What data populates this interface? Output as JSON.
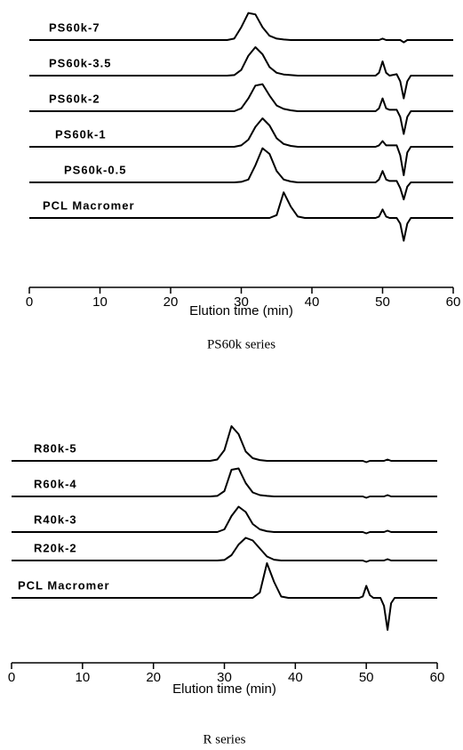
{
  "chart_data": [
    {
      "type": "line",
      "caption": "PS60k series",
      "xlabel": "Elution time (min)",
      "xlim": [
        0,
        60
      ],
      "xticks": [
        0,
        10,
        20,
        30,
        40,
        50,
        60
      ],
      "x": [
        0,
        28,
        29,
        30,
        31,
        32,
        33,
        34,
        35,
        36,
        37,
        38,
        39,
        40,
        49,
        49.5,
        50,
        50.5,
        51,
        52,
        52.5,
        53,
        53.5,
        54,
        60
      ],
      "series": [
        {
          "name": "PS60k-7",
          "color": "#000000",
          "values": [
            0,
            0,
            0.05,
            0.45,
            0.95,
            0.9,
            0.45,
            0.15,
            0.05,
            0.02,
            0,
            0,
            0,
            0,
            0,
            0,
            0.05,
            0,
            0,
            0,
            0,
            -0.08,
            0,
            0,
            0
          ]
        },
        {
          "name": "PS60k-3.5",
          "color": "#000000",
          "values": [
            0,
            0,
            0.02,
            0.2,
            0.7,
            1,
            0.75,
            0.3,
            0.1,
            0.04,
            0.02,
            0,
            0,
            0,
            0,
            0.1,
            0.5,
            0.1,
            0,
            0.05,
            -0.2,
            -0.8,
            -0.2,
            0,
            0
          ]
        },
        {
          "name": "PS60k-2",
          "color": "#000000",
          "values": [
            0,
            0,
            0,
            0.1,
            0.45,
            0.9,
            0.95,
            0.55,
            0.2,
            0.08,
            0.03,
            0,
            0,
            0,
            0,
            0.1,
            0.45,
            0.1,
            0.05,
            0.05,
            -0.2,
            -0.8,
            -0.2,
            0,
            0
          ]
        },
        {
          "name": "PS60k-1",
          "color": "#000000",
          "values": [
            0,
            0,
            0,
            0.05,
            0.25,
            0.7,
            1,
            0.75,
            0.3,
            0.1,
            0.03,
            0,
            0,
            0,
            0,
            0.05,
            0.2,
            0.05,
            0.05,
            0.05,
            -0.3,
            -1,
            -0.2,
            0,
            0
          ]
        },
        {
          "name": "PS60k-0.5",
          "color": "#000000",
          "values": [
            0,
            0,
            0,
            0.02,
            0.1,
            0.6,
            1.2,
            1,
            0.4,
            0.1,
            0.03,
            0,
            0,
            0,
            0,
            0.1,
            0.4,
            0.1,
            0.05,
            0.05,
            -0.2,
            -0.6,
            -0.15,
            0,
            0
          ]
        },
        {
          "name": "PCL Macromer",
          "color": "#000000",
          "values": [
            0,
            0,
            0,
            0,
            0,
            0,
            0,
            0,
            0.1,
            0.9,
            0.4,
            0.05,
            0,
            0,
            0,
            0.05,
            0.3,
            0.05,
            0,
            0,
            -0.2,
            -0.8,
            -0.2,
            0,
            0
          ]
        }
      ]
    },
    {
      "type": "line",
      "caption": "R series",
      "xlabel": "Elution time (min)",
      "xlim": [
        0,
        60
      ],
      "xticks": [
        0,
        10,
        20,
        30,
        40,
        50,
        60
      ],
      "x": [
        0,
        28,
        29,
        30,
        31,
        32,
        33,
        34,
        35,
        36,
        37,
        38,
        39,
        40,
        49,
        49.5,
        50,
        50.5,
        51,
        52,
        52.5,
        53,
        53.5,
        54,
        60
      ],
      "series": [
        {
          "name": "R80k-5",
          "color": "#000000",
          "values": [
            0,
            0,
            0.05,
            0.4,
            1.3,
            1,
            0.35,
            0.1,
            0.03,
            0,
            0,
            0,
            0,
            0,
            0,
            0,
            -0.05,
            0,
            0,
            0,
            0,
            0.05,
            0,
            0,
            0
          ]
        },
        {
          "name": "R60k-4",
          "color": "#000000",
          "values": [
            0,
            0,
            0.02,
            0.2,
            1,
            1.05,
            0.5,
            0.15,
            0.05,
            0.02,
            0,
            0,
            0,
            0,
            0,
            0,
            -0.05,
            0,
            0,
            0,
            0,
            0.05,
            0,
            0,
            0
          ]
        },
        {
          "name": "R40k-3",
          "color": "#000000",
          "values": [
            0,
            0,
            0,
            0.1,
            0.6,
            0.95,
            0.75,
            0.3,
            0.1,
            0.03,
            0,
            0,
            0,
            0,
            0,
            0,
            -0.05,
            0,
            0,
            0,
            0,
            0.05,
            0,
            0,
            0
          ]
        },
        {
          "name": "R20k-2",
          "color": "#000000",
          "values": [
            0,
            0,
            0,
            0.02,
            0.2,
            0.6,
            0.85,
            0.75,
            0.45,
            0.15,
            0.03,
            0,
            0,
            0,
            0,
            0,
            -0.05,
            0,
            0,
            0,
            0,
            0.05,
            0,
            0,
            0
          ]
        },
        {
          "name": "PCL Macromer",
          "color": "#000000",
          "values": [
            0,
            0,
            0,
            0,
            0,
            0,
            0,
            0,
            0.2,
            1.3,
            0.6,
            0.05,
            0,
            0,
            0,
            0.05,
            0.45,
            0.1,
            0,
            0,
            -0.3,
            -1.2,
            -0.2,
            0,
            0
          ]
        }
      ]
    }
  ]
}
